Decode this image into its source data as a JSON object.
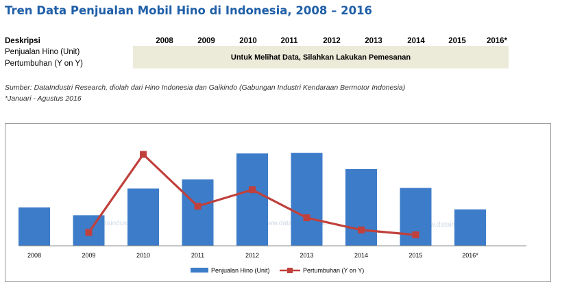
{
  "title": "Tren Data Penjualan Mobil Hino di Indonesia, 2008 – 2016",
  "table": {
    "header_label": "Deskripsi",
    "years": [
      "2008",
      "2009",
      "2010",
      "2011",
      "2012",
      "2013",
      "2014",
      "2015",
      "2016*"
    ],
    "rows": [
      "Penjualan Hino (Unit)",
      "Pertumbuhan (Y on Y)"
    ],
    "notice": "Untuk Melihat Data, Silahkan Lakukan Pemesanan"
  },
  "source": "Sumber: DataIndustri Research, diolah dari Hino Indonesia dan Gaikindo (Gabungan Industri Kendaraan Bermotor Indonesia)",
  "footnote": "*Januari - Agustus 2016",
  "watermark": "www.dataindustri.com",
  "colors": {
    "bar": "#3d7cc9",
    "line": "#c0403c",
    "title": "#1f5fa8",
    "notice_bg": "#ecead9"
  },
  "chart_data": {
    "type": "bar+line",
    "categories": [
      "2008",
      "2009",
      "2010",
      "2011",
      "2012",
      "2013",
      "2014",
      "2015",
      "2016*"
    ],
    "series": [
      {
        "name": "Penjualan Hino (Unit)",
        "type": "bar",
        "values": [
          59,
          47,
          88,
          102,
          142,
          143,
          118,
          89,
          56
        ]
      },
      {
        "name": "Pertumbuhan (Y on Y)",
        "type": "line",
        "values": [
          null,
          22,
          150,
          65,
          92,
          46,
          26,
          18,
          null
        ]
      }
    ],
    "legend_position": "bottom",
    "grid": false
  }
}
